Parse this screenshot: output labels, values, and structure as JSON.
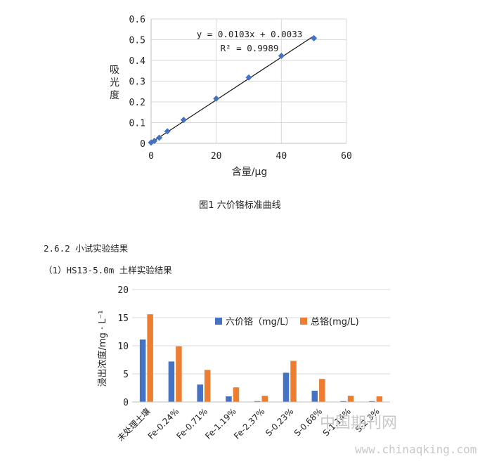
{
  "figure1": {
    "caption": "图1 六价铬标准曲线",
    "chart_data": {
      "type": "scatter",
      "x": [
        0,
        1,
        2.5,
        5,
        10,
        20,
        30,
        40,
        50
      ],
      "y": [
        0.004,
        0.012,
        0.027,
        0.058,
        0.113,
        0.216,
        0.318,
        0.422,
        0.507
      ],
      "xlabel": "含量/μg",
      "ylabel": "吸光度",
      "xlim": [
        0,
        60
      ],
      "ylim": [
        0,
        0.6
      ],
      "x_ticks": [
        "0",
        "20",
        "40",
        "60"
      ],
      "y_ticks": [
        "0",
        "0.1",
        "0.2",
        "0.3",
        "0.4",
        "0.5",
        "0.6"
      ],
      "trendline": {
        "slope": 0.0103,
        "intercept": 0.0033
      },
      "equation": "y = 0.0103x + 0.0033",
      "r2": "R² = 0.9989",
      "marker_color": "#4472c4",
      "grid": true
    }
  },
  "section_heading": "2.6.2 小试实验结果",
  "sub_heading": "（1）HS13-5.0m 土样实验结果",
  "figure2": {
    "chart_data": {
      "type": "bar",
      "categories": [
        "未处理土壤",
        "Fe-0.24%",
        "Fe-0.71%",
        "Fe-1.19%",
        "Fe-2.37%",
        "S-0.23%",
        "S-0.68%",
        "S-1.14%",
        "S-2.3%"
      ],
      "series": [
        {
          "name": "六价铬（mg/L）",
          "color": "#4472c4",
          "values": [
            11.1,
            7.2,
            3.1,
            1.0,
            0.15,
            5.2,
            2.0,
            0.15,
            0.15
          ]
        },
        {
          "name": "总铬(mg/L)",
          "color": "#ed7d31",
          "values": [
            15.6,
            9.9,
            5.7,
            2.6,
            1.1,
            7.3,
            4.1,
            1.1,
            1.0
          ]
        }
      ],
      "ylabel": "浸出浓度/mg · L⁻¹",
      "ylim": [
        0,
        20
      ],
      "y_ticks": [
        "0",
        "5",
        "10",
        "15",
        "20"
      ],
      "legend_position": "top-right",
      "grid": true
    }
  },
  "watermark": {
    "cn": "中国期刊网",
    "url": "www.chinaqking.com"
  }
}
